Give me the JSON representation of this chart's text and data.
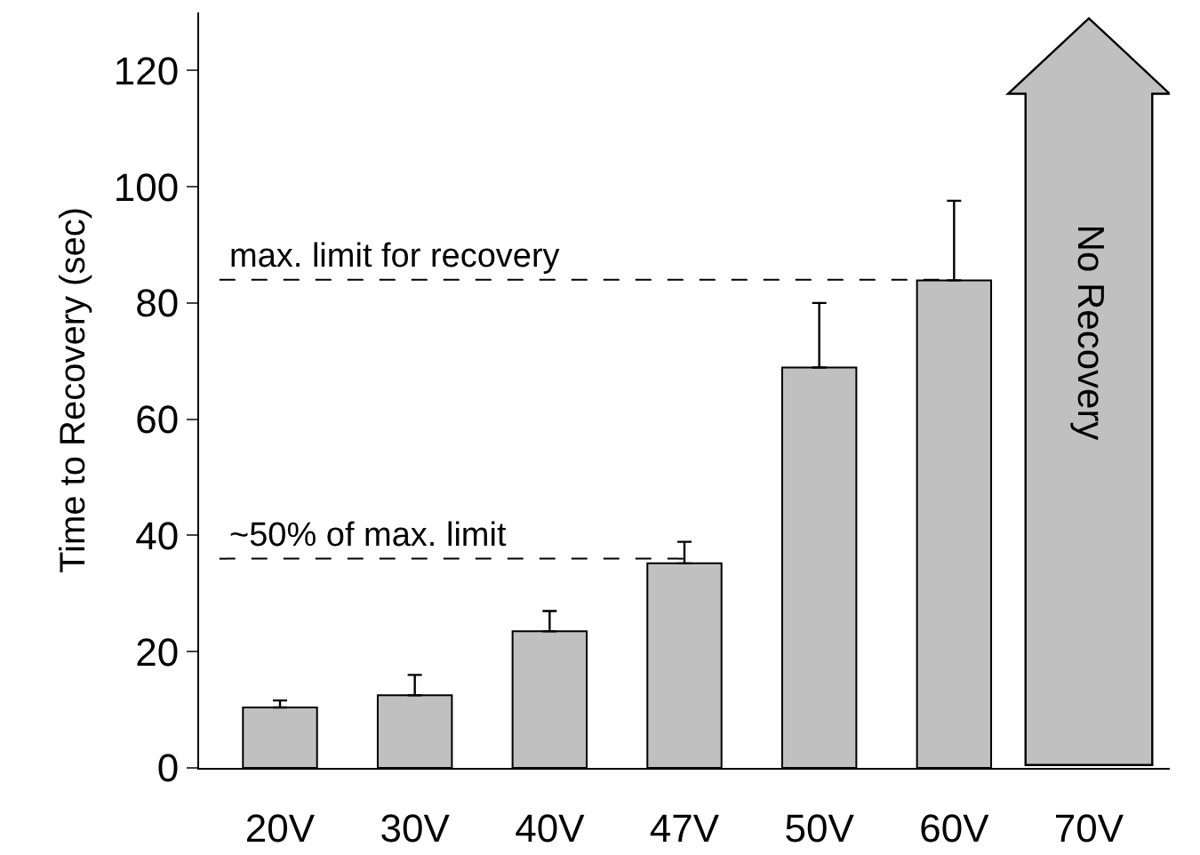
{
  "chart_data": {
    "type": "bar",
    "ylabel": "Time to Recovery (sec)",
    "categories": [
      "20V",
      "30V",
      "40V",
      "47V",
      "50V",
      "60V",
      "70V"
    ],
    "values": [
      10.4,
      12.5,
      23.5,
      35.2,
      68.9,
      83.9,
      null
    ],
    "errors": [
      [
        10.4,
        11.6
      ],
      [
        12.5,
        16
      ],
      [
        23.5,
        27
      ],
      [
        35.2,
        38.9
      ],
      [
        68.9,
        80
      ],
      [
        83.9,
        97.6
      ],
      null
    ],
    "color": "#c0c0c0",
    "ylim": [
      0,
      130
    ],
    "yticks": [
      0,
      20,
      40,
      60,
      80,
      100,
      120
    ],
    "grid": false,
    "ref_lines": [
      {
        "axis": "y",
        "value": 84,
        "label": "max. limit for recovery",
        "line_style": "dashed"
      },
      {
        "axis": "y",
        "value": 36,
        "label": "~50% of max. limit",
        "line_style": "dashed"
      }
    ],
    "annotations": [
      "No Recovery"
    ]
  }
}
